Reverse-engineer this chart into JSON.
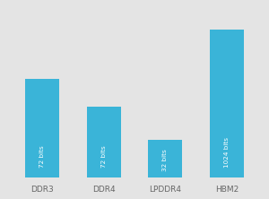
{
  "categories": [
    "DDR3",
    "DDR4",
    "LPDDR4",
    "HBM2"
  ],
  "display_values": [
    0.6,
    0.43,
    0.23,
    0.9
  ],
  "bar_labels": [
    "72 bits",
    "72 bits",
    "32 bits",
    "1024 bits"
  ],
  "bar_color": "#3ab4d8",
  "background_color": "#e4e4e4",
  "label_fontsize": 5.2,
  "tick_fontsize": 6.5,
  "bar_width": 0.55,
  "ylim": [
    0,
    1.05
  ]
}
